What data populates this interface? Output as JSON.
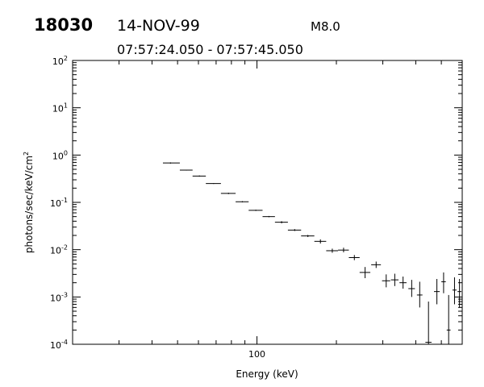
{
  "header": {
    "event_id": "18030",
    "date": "14-NOV-99",
    "flare_class": "M8.0",
    "time_range": "07:57:24.050 - 07:57:45.050"
  },
  "chart_data": {
    "type": "scatter",
    "title": "",
    "xlabel": "Energy (keV)",
    "ylabel": "photons/sec/keV/cm",
    "ylabel_superscript": "2",
    "x_scale": "log",
    "y_scale": "log",
    "xlim": [
      20,
      600
    ],
    "ylim": [
      0.0001,
      100
    ],
    "x_tick_labels": [
      "100"
    ],
    "y_tick_labels": [
      {
        "base": "10",
        "exp": "2"
      },
      {
        "base": "10",
        "exp": "1"
      },
      {
        "base": "10",
        "exp": "0"
      },
      {
        "base": "10",
        "exp": "-1"
      },
      {
        "base": "10",
        "exp": "-2"
      },
      {
        "base": "10",
        "exp": "-3"
      },
      {
        "base": "10",
        "exp": "-4"
      }
    ],
    "grid": false,
    "series": [
      {
        "points": [
          {
            "x": 47,
            "xlo": 44,
            "xhi": 51,
            "y": 0.68,
            "ylo": 0.66,
            "yhi": 0.7
          },
          {
            "x": 54,
            "xlo": 51,
            "xhi": 57,
            "y": 0.48,
            "ylo": 0.47,
            "yhi": 0.49
          },
          {
            "x": 60.5,
            "xlo": 57,
            "xhi": 64,
            "y": 0.36,
            "ylo": 0.35,
            "yhi": 0.37
          },
          {
            "x": 68.5,
            "xlo": 64,
            "xhi": 73,
            "y": 0.25,
            "ylo": 0.245,
            "yhi": 0.255
          },
          {
            "x": 78,
            "xlo": 73,
            "xhi": 83,
            "y": 0.155,
            "ylo": 0.15,
            "yhi": 0.16
          },
          {
            "x": 88,
            "xlo": 83,
            "xhi": 93,
            "y": 0.103,
            "ylo": 0.1,
            "yhi": 0.106
          },
          {
            "x": 99,
            "xlo": 93,
            "xhi": 105,
            "y": 0.068,
            "ylo": 0.066,
            "yhi": 0.07
          },
          {
            "x": 111,
            "xlo": 105,
            "xhi": 117,
            "y": 0.05,
            "ylo": 0.0485,
            "yhi": 0.0515
          },
          {
            "x": 124,
            "xlo": 117,
            "xhi": 131,
            "y": 0.038,
            "ylo": 0.036,
            "yhi": 0.04
          },
          {
            "x": 139,
            "xlo": 131,
            "xhi": 147,
            "y": 0.026,
            "ylo": 0.0248,
            "yhi": 0.0272
          },
          {
            "x": 156,
            "xlo": 147,
            "xhi": 165,
            "y": 0.0195,
            "ylo": 0.0185,
            "yhi": 0.0205
          },
          {
            "x": 174,
            "xlo": 165,
            "xhi": 183,
            "y": 0.015,
            "ylo": 0.0135,
            "yhi": 0.0165
          },
          {
            "x": 193,
            "xlo": 183,
            "xhi": 203,
            "y": 0.0095,
            "ylo": 0.0086,
            "yhi": 0.0105
          },
          {
            "x": 213,
            "xlo": 203,
            "xhi": 223,
            "y": 0.0098,
            "ylo": 0.0088,
            "yhi": 0.011
          },
          {
            "x": 234,
            "xlo": 223,
            "xhi": 245,
            "y": 0.0068,
            "ylo": 0.006,
            "yhi": 0.0077
          },
          {
            "x": 257,
            "xlo": 245,
            "xhi": 269,
            "y": 0.0033,
            "ylo": 0.0025,
            "yhi": 0.0043
          },
          {
            "x": 283,
            "xlo": 271,
            "xhi": 295,
            "y": 0.0048,
            "ylo": 0.0041,
            "yhi": 0.0056
          },
          {
            "x": 309,
            "xlo": 298,
            "xhi": 320,
            "y": 0.0022,
            "ylo": 0.0016,
            "yhi": 0.003
          },
          {
            "x": 333,
            "xlo": 322,
            "xhi": 344,
            "y": 0.0023,
            "ylo": 0.0017,
            "yhi": 0.0031
          },
          {
            "x": 358,
            "xlo": 347,
            "xhi": 369,
            "y": 0.002,
            "ylo": 0.0015,
            "yhi": 0.0027
          },
          {
            "x": 386,
            "xlo": 375,
            "xhi": 397,
            "y": 0.0015,
            "ylo": 0.001,
            "yhi": 0.0023
          },
          {
            "x": 414,
            "xlo": 404,
            "xhi": 424,
            "y": 0.0011,
            "ylo": 0.0006,
            "yhi": 0.0021
          },
          {
            "x": 447,
            "xlo": 435,
            "xhi": 459,
            "y": 0.00011,
            "ylo": 0.0001,
            "yhi": 0.0008
          },
          {
            "x": 481,
            "xlo": 469,
            "xhi": 493,
            "y": 0.0013,
            "ylo": 0.0007,
            "yhi": 0.0024
          },
          {
            "x": 510,
            "xlo": 500,
            "xhi": 520,
            "y": 0.0021,
            "ylo": 0.0012,
            "yhi": 0.0033
          },
          {
            "x": 533,
            "xlo": 524,
            "xhi": 542,
            "y": 0.0002,
            "ylo": 0.0001,
            "yhi": 0.0011
          },
          {
            "x": 561,
            "xlo": 551,
            "xhi": 571,
            "y": 0.0014,
            "ylo": 0.0007,
            "yhi": 0.0026
          },
          {
            "x": 586,
            "xlo": 576,
            "xhi": 596,
            "y": 0.0013,
            "ylo": 0.0006,
            "yhi": 0.0024
          }
        ]
      }
    ]
  }
}
